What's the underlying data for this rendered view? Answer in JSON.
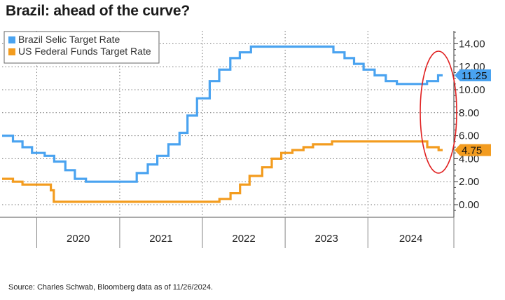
{
  "title": "Brazil: ahead of the curve?",
  "source": "Source: Charles Schwab, Bloomberg data as of 11/26/2024.",
  "chart_data": {
    "type": "line",
    "x_range": [
      "2019-08-01",
      "2024-11-26"
    ],
    "ylim": [
      -1,
      15.5
    ],
    "y_ticks": [
      0,
      2,
      4,
      6,
      8,
      10,
      12,
      14
    ],
    "y_tick_labels": [
      "0.00",
      "2.00",
      "4.00",
      "6.00",
      "8.00",
      "10.00",
      "12.00",
      "14.00"
    ],
    "x_tick_labels": [
      "2020",
      "2021",
      "2022",
      "2023",
      "2024"
    ],
    "year_boundaries": [
      "2020-01-01",
      "2021-01-01",
      "2022-01-01",
      "2023-01-01",
      "2024-01-01"
    ],
    "grid": true,
    "legend_position": "top-left",
    "series": [
      {
        "name": "Brazil Selic Target Rate",
        "color": "#4aa3f0",
        "steps": [
          [
            "2019-08-01",
            6.0
          ],
          [
            "2019-09-18",
            5.5
          ],
          [
            "2019-10-30",
            5.0
          ],
          [
            "2019-12-11",
            4.5
          ],
          [
            "2020-02-05",
            4.25
          ],
          [
            "2020-03-18",
            3.75
          ],
          [
            "2020-05-06",
            3.0
          ],
          [
            "2020-06-17",
            2.25
          ],
          [
            "2020-08-05",
            2.0
          ],
          [
            "2021-03-17",
            2.75
          ],
          [
            "2021-05-05",
            3.5
          ],
          [
            "2021-06-16",
            4.25
          ],
          [
            "2021-08-04",
            5.25
          ],
          [
            "2021-09-22",
            6.25
          ],
          [
            "2021-10-27",
            7.75
          ],
          [
            "2021-12-08",
            9.25
          ],
          [
            "2022-02-02",
            10.75
          ],
          [
            "2022-03-16",
            11.75
          ],
          [
            "2022-05-04",
            12.75
          ],
          [
            "2022-06-15",
            13.25
          ],
          [
            "2022-08-03",
            13.75
          ],
          [
            "2023-08-02",
            13.25
          ],
          [
            "2023-09-20",
            12.75
          ],
          [
            "2023-11-01",
            12.25
          ],
          [
            "2023-12-13",
            11.75
          ],
          [
            "2024-01-31",
            11.25
          ],
          [
            "2024-03-20",
            10.75
          ],
          [
            "2024-05-08",
            10.5
          ],
          [
            "2024-09-18",
            10.75
          ],
          [
            "2024-11-06",
            11.25
          ],
          [
            "2024-11-26",
            11.25
          ]
        ],
        "last_value_label": "11.25"
      },
      {
        "name": "US Federal Funds Target Rate",
        "color": "#f39c1f",
        "steps": [
          [
            "2019-08-01",
            2.25
          ],
          [
            "2019-09-18",
            2.0
          ],
          [
            "2019-10-30",
            1.75
          ],
          [
            "2020-03-03",
            1.25
          ],
          [
            "2020-03-16",
            0.25
          ],
          [
            "2022-03-17",
            0.5
          ],
          [
            "2022-05-05",
            1.0
          ],
          [
            "2022-06-16",
            1.75
          ],
          [
            "2022-07-28",
            2.5
          ],
          [
            "2022-09-22",
            3.25
          ],
          [
            "2022-11-03",
            4.0
          ],
          [
            "2022-12-15",
            4.5
          ],
          [
            "2023-02-02",
            4.75
          ],
          [
            "2023-03-23",
            5.0
          ],
          [
            "2023-05-04",
            5.25
          ],
          [
            "2023-07-27",
            5.5
          ],
          [
            "2024-09-19",
            5.0
          ],
          [
            "2024-11-08",
            4.75
          ],
          [
            "2024-11-26",
            4.75
          ]
        ],
        "last_value_label": "4.75"
      }
    ],
    "annotation": {
      "type": "ellipse",
      "color": "#e02020"
    }
  }
}
